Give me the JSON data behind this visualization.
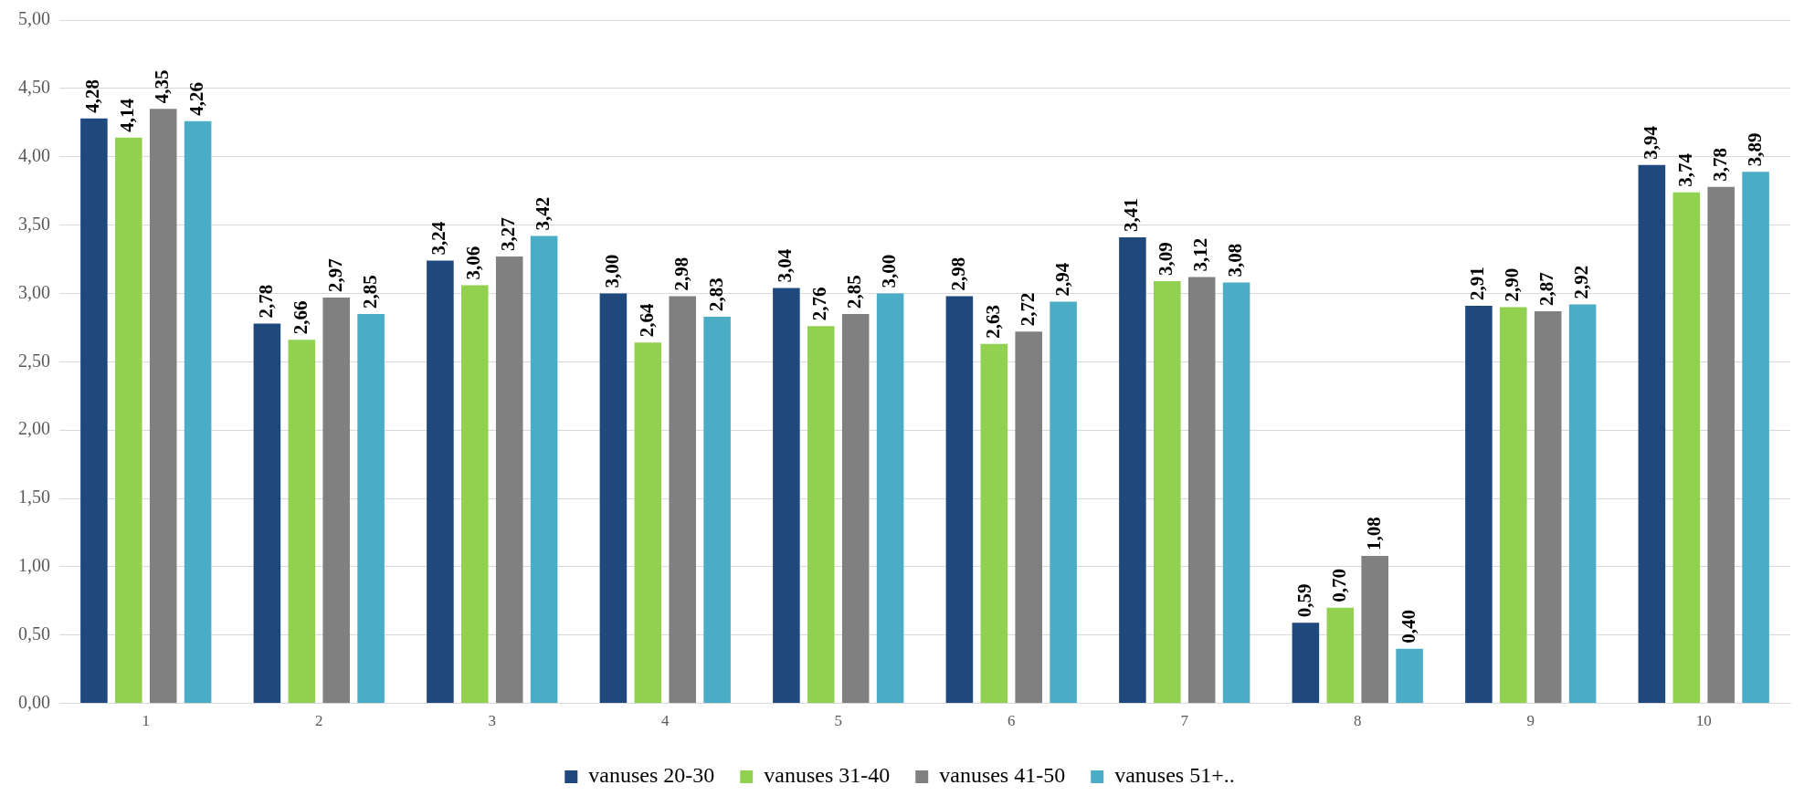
{
  "chart_data": {
    "type": "bar",
    "categories": [
      "1",
      "2",
      "3",
      "4",
      "5",
      "6",
      "7",
      "8",
      "9",
      "10"
    ],
    "series": [
      {
        "name": "vanuses 20-30",
        "color": "#1f497d",
        "values": [
          4.28,
          2.78,
          3.24,
          3.0,
          3.04,
          2.98,
          3.41,
          0.59,
          2.91,
          3.94
        ],
        "value_labels": [
          "4,28",
          "2,78",
          "3,24",
          "3,00",
          "3,04",
          "2,98",
          "3,41",
          "0,59",
          "2,91",
          "3,94"
        ]
      },
      {
        "name": "vanuses 31-40",
        "color": "#92d050",
        "values": [
          4.14,
          2.66,
          3.06,
          2.64,
          2.76,
          2.63,
          3.09,
          0.7,
          2.9,
          3.74
        ],
        "value_labels": [
          "4,14",
          "2,66",
          "3,06",
          "2,64",
          "2,76",
          "2,63",
          "3,09",
          "0,70",
          "2,90",
          "3,74"
        ]
      },
      {
        "name": "vanuses 41-50",
        "color": "#808080",
        "values": [
          4.35,
          2.97,
          3.27,
          2.98,
          2.85,
          2.72,
          3.12,
          1.08,
          2.87,
          3.78
        ],
        "value_labels": [
          "4,35",
          "2,97",
          "3,27",
          "2,98",
          "2,85",
          "2,72",
          "3,12",
          "1,08",
          "2,87",
          "3,78"
        ]
      },
      {
        "name": "vanuses 51+..",
        "color": "#4bacc6",
        "values": [
          4.26,
          2.85,
          3.42,
          2.83,
          3.0,
          2.94,
          3.08,
          0.4,
          2.92,
          3.89
        ],
        "value_labels": [
          "4,26",
          "2,85",
          "3,42",
          "2,83",
          "3,00",
          "2,94",
          "3,08",
          "0,40",
          "2,92",
          "3,89"
        ]
      }
    ],
    "ylim": [
      0,
      5
    ],
    "yticks": [
      {
        "value": 0,
        "label": "0,00"
      },
      {
        "value": 0.5,
        "label": "0,50"
      },
      {
        "value": 1,
        "label": "1,00"
      },
      {
        "value": 1.5,
        "label": "1,50"
      },
      {
        "value": 2,
        "label": "2,00"
      },
      {
        "value": 2.5,
        "label": "2,50"
      },
      {
        "value": 3,
        "label": "3,00"
      },
      {
        "value": 3.5,
        "label": "3,50"
      },
      {
        "value": 4,
        "label": "4,00"
      },
      {
        "value": 4.5,
        "label": "4,50"
      },
      {
        "value": 5,
        "label": "5,00"
      }
    ],
    "grid": "y",
    "legend": "bottom"
  }
}
